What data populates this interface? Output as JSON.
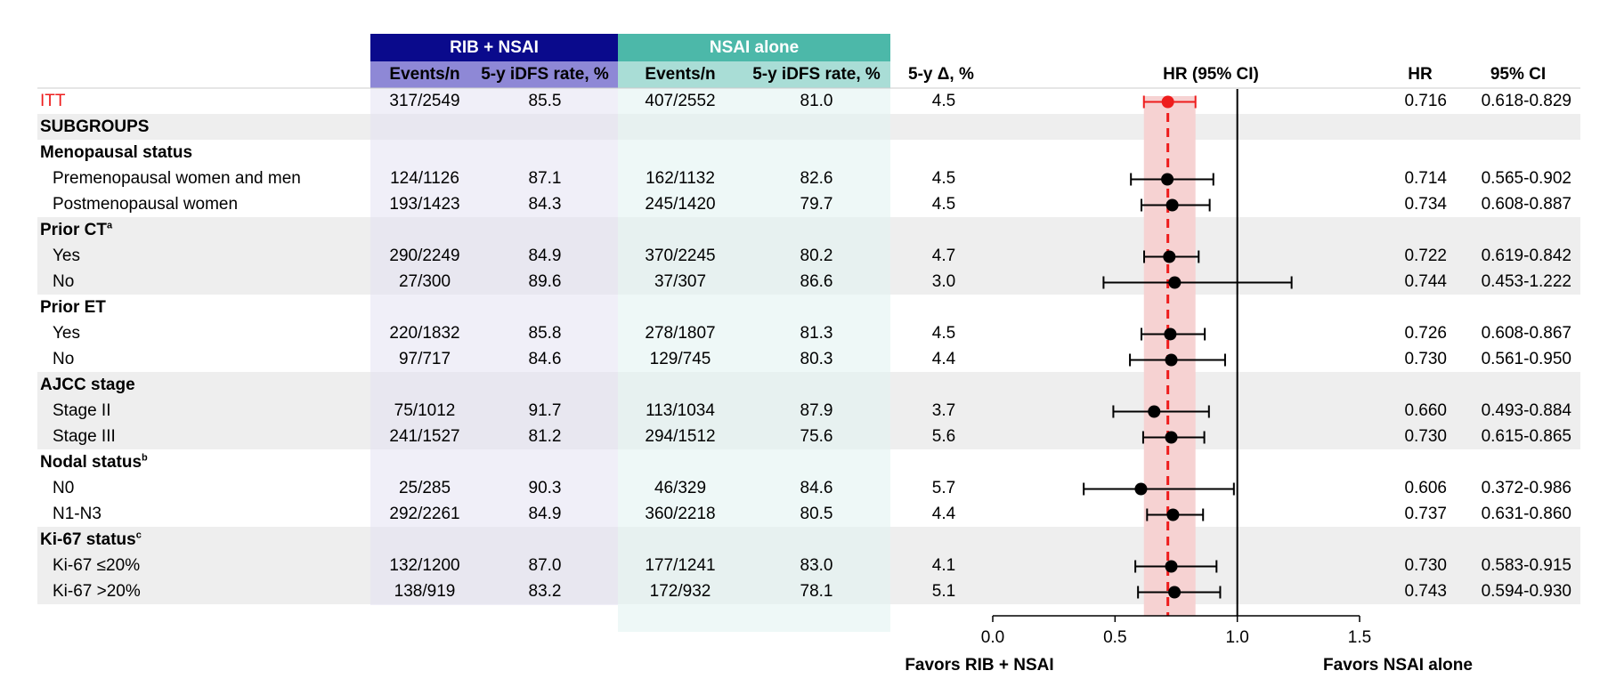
{
  "header": {
    "group1": "RIB + NSAI",
    "group2": "NSAI alone",
    "g1_events": "Events/n",
    "g1_rate": "5-y iDFS rate, %",
    "g2_events": "Events/n",
    "g2_rate": "5-y iDFS rate, %",
    "delta": "5-y Δ, %",
    "forest": "HR (95% CI)",
    "hr": "HR",
    "ci": "95% CI"
  },
  "rows": [
    {
      "label": "ITT",
      "kind": "itt",
      "g1_events": "317/2549",
      "g1_rate": "85.5",
      "g2_events": "407/2552",
      "g2_rate": "81.0",
      "delta": "4.5",
      "hr_text": "0.716",
      "ci_text": "0.618-0.829"
    },
    {
      "label": "SUBGROUPS",
      "kind": "section"
    },
    {
      "label": "Menopausal status",
      "kind": "heading"
    },
    {
      "label": "Premenopausal women and men",
      "kind": "data",
      "g1_events": "124/1126",
      "g1_rate": "87.1",
      "g2_events": "162/1132",
      "g2_rate": "82.6",
      "delta": "4.5",
      "hr_text": "0.714",
      "ci_text": "0.565-0.902"
    },
    {
      "label": "Postmenopausal women",
      "kind": "data",
      "g1_events": "193/1423",
      "g1_rate": "84.3",
      "g2_events": "245/1420",
      "g2_rate": "79.7",
      "delta": "4.5",
      "hr_text": "0.734",
      "ci_text": "0.608-0.887"
    },
    {
      "label": "Prior CT",
      "sup": "a",
      "kind": "heading"
    },
    {
      "label": "Yes",
      "kind": "data",
      "g1_events": "290/2249",
      "g1_rate": "84.9",
      "g2_events": "370/2245",
      "g2_rate": "80.2",
      "delta": "4.7",
      "hr_text": "0.722",
      "ci_text": "0.619-0.842"
    },
    {
      "label": "No",
      "kind": "data",
      "g1_events": "27/300",
      "g1_rate": "89.6",
      "g2_events": "37/307",
      "g2_rate": "86.6",
      "delta": "3.0",
      "hr_text": "0.744",
      "ci_text": "0.453-1.222"
    },
    {
      "label": "Prior ET",
      "kind": "heading"
    },
    {
      "label": "Yes",
      "kind": "data",
      "g1_events": "220/1832",
      "g1_rate": "85.8",
      "g2_events": "278/1807",
      "g2_rate": "81.3",
      "delta": "4.5",
      "hr_text": "0.726",
      "ci_text": "0.608-0.867"
    },
    {
      "label": "No",
      "kind": "data",
      "g1_events": "97/717",
      "g1_rate": "84.6",
      "g2_events": "129/745",
      "g2_rate": "80.3",
      "delta": "4.4",
      "hr_text": "0.730",
      "ci_text": "0.561-0.950"
    },
    {
      "label": "AJCC stage",
      "kind": "heading"
    },
    {
      "label": "Stage II",
      "kind": "data",
      "g1_events": "75/1012",
      "g1_rate": "91.7",
      "g2_events": "113/1034",
      "g2_rate": "87.9",
      "delta": "3.7",
      "hr_text": "0.660",
      "ci_text": "0.493-0.884"
    },
    {
      "label": "Stage III",
      "kind": "data",
      "g1_events": "241/1527",
      "g1_rate": "81.2",
      "g2_events": "294/1512",
      "g2_rate": "75.6",
      "delta": "5.6",
      "hr_text": "0.730",
      "ci_text": "0.615-0.865"
    },
    {
      "label": "Nodal status",
      "sup": "b",
      "kind": "heading"
    },
    {
      "label": "N0",
      "kind": "data",
      "g1_events": "25/285",
      "g1_rate": "90.3",
      "g2_events": "46/329",
      "g2_rate": "84.6",
      "delta": "5.7",
      "hr_text": "0.606",
      "ci_text": "0.372-0.986"
    },
    {
      "label": "N1-N3",
      "kind": "data",
      "g1_events": "292/2261",
      "g1_rate": "84.9",
      "g2_events": "360/2218",
      "g2_rate": "80.5",
      "delta": "4.4",
      "hr_text": "0.737",
      "ci_text": "0.631-0.860"
    },
    {
      "label": "Ki-67 status",
      "sup": "c",
      "kind": "heading"
    },
    {
      "label": "Ki-67 ≤20%",
      "kind": "data",
      "g1_events": "132/1200",
      "g1_rate": "87.0",
      "g2_events": "177/1241",
      "g2_rate": "83.0",
      "delta": "4.1",
      "hr_text": "0.730",
      "ci_text": "0.583-0.915"
    },
    {
      "label": "Ki-67 >20%",
      "kind": "data",
      "g1_events": "138/919",
      "g1_rate": "83.2",
      "g2_events": "172/932",
      "g2_rate": "78.1",
      "delta": "5.1",
      "hr_text": "0.743",
      "ci_text": "0.594-0.930"
    }
  ],
  "axis": {
    "favors_left": "Favors RIB + NSAI",
    "favors_right": "Favors NSAI alone"
  },
  "colors": {
    "group1_dark": "#0a0a8c",
    "group1_light": "#8e88d6",
    "group2_dark": "#4cb8a9",
    "group2_light": "#a9ddd6",
    "itt": "#ee1c1c",
    "band": "#f6d2d2"
  },
  "chart_data": {
    "type": "forest",
    "title": "HR (95% CI)",
    "xlim": [
      0.0,
      1.5
    ],
    "xticks": [
      0.0,
      0.5,
      1.0,
      1.5
    ],
    "xtick_labels": [
      "0.0",
      "0.5",
      "1.0",
      "1.5"
    ],
    "reference_line": 1.0,
    "itt_line": 0.716,
    "itt_ci_band": [
      0.618,
      0.829
    ],
    "points": [
      {
        "label": "ITT",
        "hr": 0.716,
        "lo": 0.618,
        "hi": 0.829
      },
      {
        "label": "Premenopausal women and men",
        "hr": 0.714,
        "lo": 0.565,
        "hi": 0.902
      },
      {
        "label": "Postmenopausal women",
        "hr": 0.734,
        "lo": 0.608,
        "hi": 0.887
      },
      {
        "label": "Prior CT: Yes",
        "hr": 0.722,
        "lo": 0.619,
        "hi": 0.842
      },
      {
        "label": "Prior CT: No",
        "hr": 0.744,
        "lo": 0.453,
        "hi": 1.222
      },
      {
        "label": "Prior ET: Yes",
        "hr": 0.726,
        "lo": 0.608,
        "hi": 0.867
      },
      {
        "label": "Prior ET: No",
        "hr": 0.73,
        "lo": 0.561,
        "hi": 0.95
      },
      {
        "label": "Stage II",
        "hr": 0.66,
        "lo": 0.493,
        "hi": 0.884
      },
      {
        "label": "Stage III",
        "hr": 0.73,
        "lo": 0.615,
        "hi": 0.865
      },
      {
        "label": "N0",
        "hr": 0.606,
        "lo": 0.372,
        "hi": 0.986
      },
      {
        "label": "N1-N3",
        "hr": 0.737,
        "lo": 0.631,
        "hi": 0.86
      },
      {
        "label": "Ki-67 ≤20%",
        "hr": 0.73,
        "lo": 0.583,
        "hi": 0.915
      },
      {
        "label": "Ki-67 >20%",
        "hr": 0.743,
        "lo": 0.594,
        "hi": 0.93
      }
    ]
  }
}
